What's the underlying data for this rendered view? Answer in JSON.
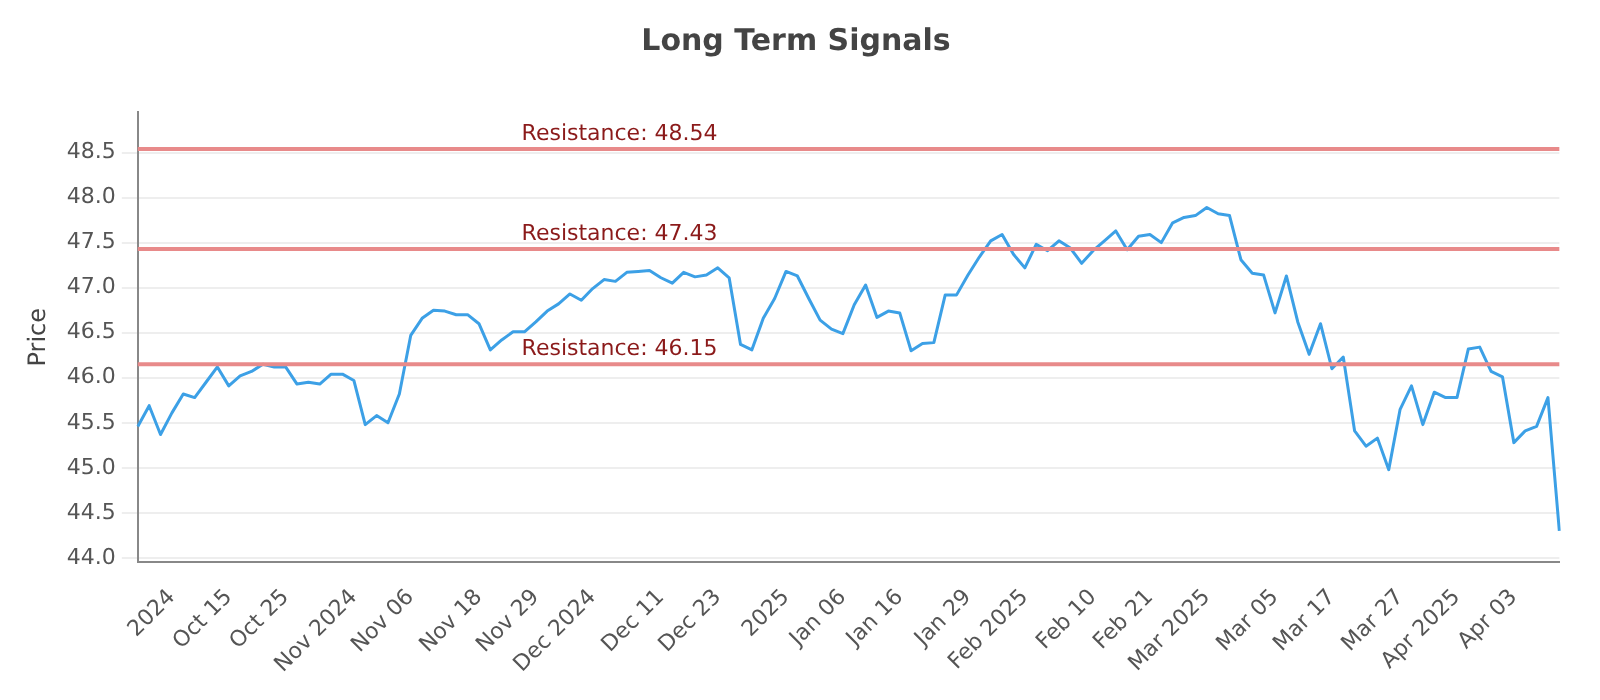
{
  "chart_data": {
    "type": "line",
    "title": "Long Term Signals",
    "ylabel": "Price",
    "categories": [
      null,
      null,
      null,
      "2024",
      null,
      null,
      null,
      null,
      "Oct 15",
      null,
      null,
      null,
      null,
      "Oct 25",
      null,
      null,
      null,
      null,
      null,
      "Nov 2024",
      null,
      null,
      null,
      null,
      "Nov 06",
      null,
      null,
      null,
      null,
      null,
      "Nov 18",
      null,
      null,
      null,
      null,
      "Nov 29",
      null,
      null,
      null,
      null,
      "Dec 2024",
      null,
      null,
      null,
      null,
      null,
      "Dec 11",
      null,
      null,
      null,
      null,
      "Dec 23",
      null,
      null,
      null,
      null,
      null,
      "2025",
      null,
      null,
      null,
      null,
      "Jan 06",
      null,
      null,
      null,
      null,
      "Jan 16",
      null,
      null,
      null,
      null,
      null,
      "Jan 29",
      null,
      null,
      null,
      null,
      "Feb 2025",
      null,
      null,
      null,
      null,
      null,
      "Feb 10",
      null,
      null,
      null,
      null,
      "Feb 21",
      null,
      null,
      null,
      null,
      "Mar 2025",
      null,
      null,
      null,
      null,
      null,
      "Mar 05",
      null,
      null,
      null,
      null,
      "Mar 17",
      null,
      null,
      null,
      null,
      null,
      "Mar 27",
      null,
      null,
      null,
      null,
      "Apr 2025",
      null,
      null,
      null,
      null,
      "Apr 03",
      null,
      null,
      null,
      null
    ],
    "series": [
      {
        "color": "#3ca0e6",
        "values": [
          45.46,
          45.69,
          45.37,
          45.61,
          45.82,
          45.78,
          45.95,
          46.12,
          45.91,
          46.02,
          46.07,
          46.15,
          46.12,
          46.12,
          45.93,
          45.95,
          45.93,
          46.04,
          46.04,
          45.97,
          45.48,
          45.58,
          45.5,
          45.82,
          46.47,
          46.66,
          46.75,
          46.74,
          46.7,
          46.7,
          46.6,
          46.31,
          46.42,
          46.51,
          46.51,
          46.62,
          46.74,
          46.82,
          46.93,
          46.86,
          46.99,
          47.09,
          47.07,
          47.17,
          47.18,
          47.19,
          47.11,
          47.05,
          47.17,
          47.12,
          47.14,
          47.22,
          47.11,
          46.37,
          46.31,
          46.66,
          46.88,
          47.18,
          47.13,
          46.88,
          46.64,
          46.54,
          46.49,
          46.81,
          47.03,
          46.67,
          46.74,
          46.72,
          46.3,
          46.38,
          46.39,
          46.92,
          46.92,
          47.14,
          47.34,
          47.52,
          47.59,
          47.37,
          47.22,
          47.48,
          47.41,
          47.52,
          47.44,
          47.27,
          47.41,
          47.52,
          47.63,
          47.42,
          47.57,
          47.59,
          47.5,
          47.72,
          47.78,
          47.8,
          47.89,
          47.82,
          47.8,
          47.31,
          47.16,
          47.14,
          46.72,
          47.13,
          46.62,
          46.26,
          46.6,
          46.1,
          46.23,
          45.41,
          45.24,
          45.33,
          44.98,
          45.65,
          45.91,
          45.48,
          45.84,
          45.78,
          45.78,
          46.32,
          46.34,
          46.07,
          46.01,
          45.28,
          45.41,
          45.46,
          45.78,
          44.3
        ]
      }
    ],
    "ylim": [
      43.95,
      48.95
    ],
    "yticks": [
      {
        "value": 44,
        "label": "44.0"
      },
      {
        "value": 44.5,
        "label": "44.5"
      },
      {
        "value": 45,
        "label": "45.0"
      },
      {
        "value": 45.5,
        "label": "45.5"
      },
      {
        "value": 46,
        "label": "46.0"
      },
      {
        "value": 46.5,
        "label": "46.5"
      },
      {
        "value": 47,
        "label": "47.0"
      },
      {
        "value": 47.5,
        "label": "47.5"
      },
      {
        "value": 48,
        "label": "48.0"
      },
      {
        "value": 48.5,
        "label": "48.5"
      }
    ],
    "grid": "y",
    "legend": false,
    "marker": "none",
    "line_style": "solid",
    "ref_lines": [
      {
        "axis": "y",
        "value": 48.54,
        "label": "Resistance: 48.54",
        "color": "#e88a8a"
      },
      {
        "axis": "y",
        "value": 47.43,
        "label": "Resistance: 47.43",
        "color": "#e88a8a"
      },
      {
        "axis": "y",
        "value": 46.15,
        "label": "Resistance: 46.15",
        "color": "#e88a8a"
      }
    ]
  }
}
